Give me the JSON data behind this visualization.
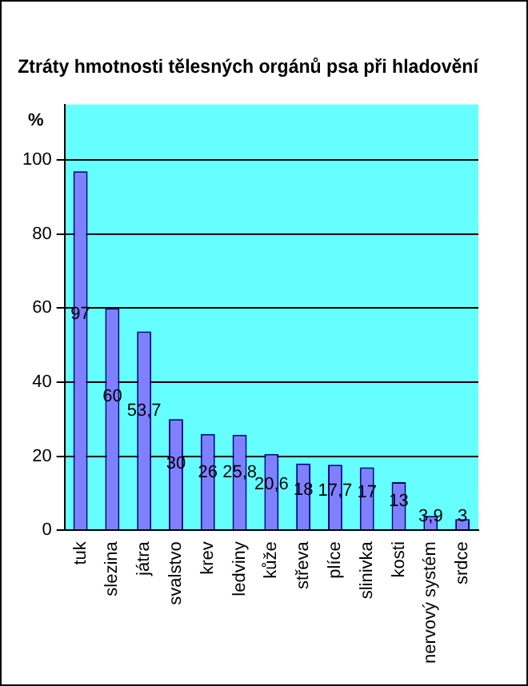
{
  "chart_data": {
    "type": "bar",
    "title": "Ztráty hmotnosti tělesných orgánů psa při hladovění",
    "ylabel": "%",
    "categories": [
      "tuk",
      "slezina",
      "játra",
      "svalstvo",
      "krev",
      "ledviny",
      "kůže",
      "střeva",
      "plíce",
      "slinivka",
      "kosti",
      "nervový systém",
      "srdce"
    ],
    "values": [
      97,
      60,
      53.7,
      30,
      26,
      25.8,
      20.6,
      18,
      17.7,
      17,
      13,
      3.9,
      3
    ],
    "value_labels": [
      "97",
      "60",
      "53,7",
      "30",
      "26",
      "25,8",
      "20,6",
      "18",
      "17,7",
      "17",
      "13",
      "3,9",
      "3"
    ],
    "color": "#8080ff",
    "ylim": [
      0,
      115
    ],
    "yticks": [
      0,
      20,
      40,
      60,
      80,
      100
    ],
    "grid": "y",
    "legend": false
  }
}
